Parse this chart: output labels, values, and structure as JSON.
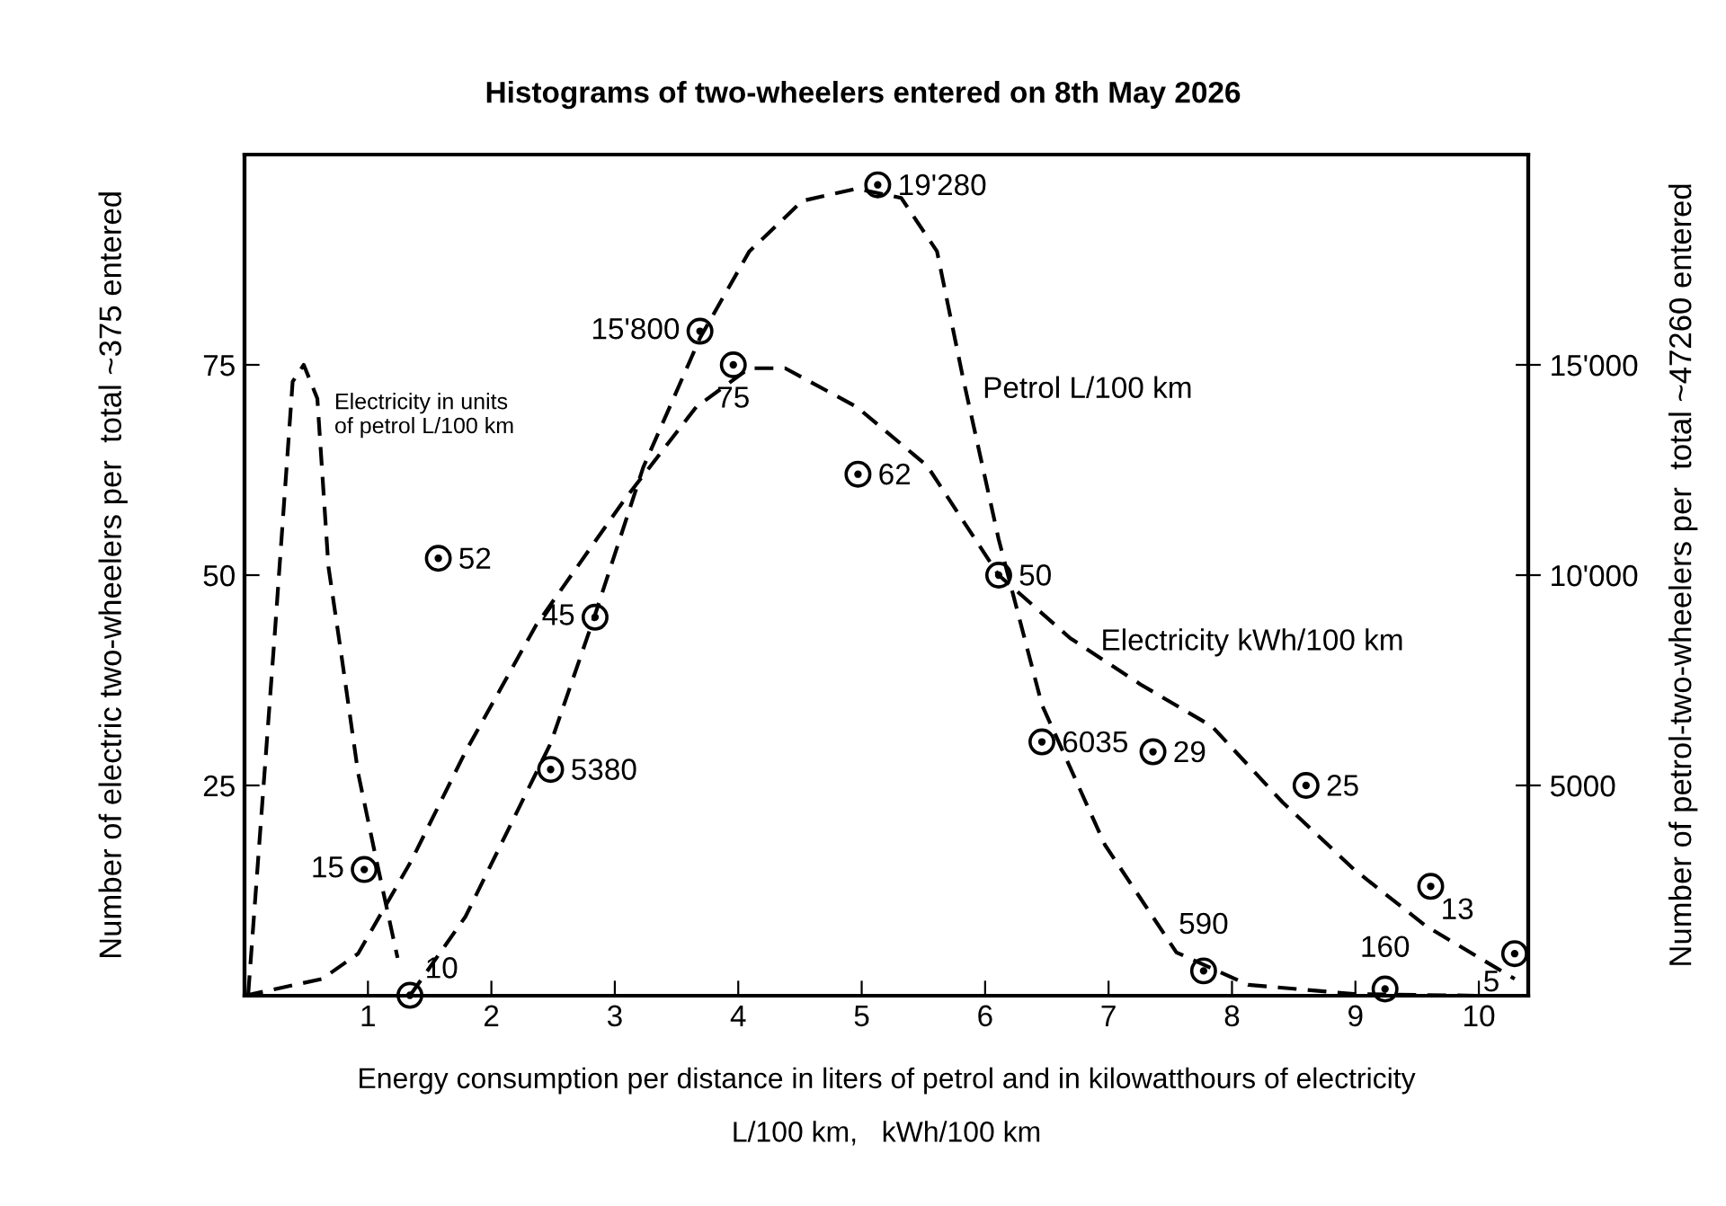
{
  "chart_data": {
    "type": "line",
    "title": "Histograms of two-wheelers entered on 8th May 2026",
    "xlabel": "Energy consumption per distance in liters of petrol and in kilowatthours of electricity\n\nL/100 km,   kWh/100 km",
    "ylabel": "Number of electric two-wheelers per  total ~375 entered",
    "y2label": "Number of petrol-two-wheelers per  total ~47260 entered",
    "xlim": [
      0,
      10.4
    ],
    "xticks": [
      1,
      2,
      3,
      4,
      5,
      6,
      7,
      8,
      9,
      10
    ],
    "ylim": [
      0,
      100
    ],
    "yticks": [
      25,
      50,
      75
    ],
    "y2lim": [
      0,
      20000
    ],
    "y2ticks": [
      {
        "value": 5000,
        "label": "5000"
      },
      {
        "value": 10000,
        "label": "10'000"
      },
      {
        "value": 15000,
        "label": "15'000"
      }
    ],
    "grid": false,
    "line_style": "dashed",
    "annotations": [
      "Electricity in units\nof petrol L/100 km",
      "Petrol L/100 km",
      "Electricity kWh/100 km"
    ],
    "series": [
      {
        "color": "#000000",
        "marker": "none",
        "x": [
          0.03,
          0.25,
          0.39,
          0.48,
          0.59,
          0.68,
          0.78,
          0.92,
          1.07,
          1.24
        ],
        "values": [
          0.2,
          44,
          73,
          75,
          71,
          51,
          41,
          26.5,
          16,
          4.5
        ]
      },
      {
        "color": "#000000",
        "marker": "none",
        "x": [
          0,
          0.63,
          0.92,
          1.35,
          1.79,
          2.36,
          3.08,
          3.66,
          4.09,
          4.38,
          4.96,
          5.53,
          6.11,
          6.69,
          7.26,
          7.84,
          8.41,
          8.99,
          9.57,
          10.29
        ],
        "values": [
          0,
          2,
          5,
          16,
          29,
          44,
          59,
          70,
          74.6,
          74.6,
          70,
          63,
          50,
          42.5,
          37,
          32,
          23,
          15,
          8.3,
          2
        ]
      },
      {
        "axis": "y2",
        "color": "#000000",
        "marker": "none",
        "x": [
          1.34,
          1.79,
          2.48,
          2.84,
          3.23,
          3.69,
          4.09,
          4.52,
          4.96,
          5.32,
          5.61,
          5.82,
          6.11,
          6.46,
          6.97,
          7.55,
          8.13,
          8.99,
          10
        ],
        "values": [
          0,
          1880,
          6000,
          9060,
          12560,
          15640,
          17700,
          18900,
          19190,
          18970,
          17700,
          14700,
          10850,
          6920,
          3590,
          1030,
          260,
          40,
          0
        ]
      },
      {
        "type": "scatter",
        "color": "#000000",
        "marker": "circle",
        "x": [
          0.97,
          1.57,
          2.84,
          3.96,
          4.97,
          6.11,
          7.36,
          8.6,
          9.61,
          10.29
        ],
        "values": [
          15,
          52,
          45,
          75,
          62,
          50,
          29,
          25,
          13,
          5
        ],
        "value_labels": [
          "15",
          "52",
          "45",
          "75",
          "62",
          "50",
          "29",
          "25",
          "13",
          "5"
        ]
      },
      {
        "type": "scatter",
        "axis": "y2",
        "color": "#000000",
        "marker": "circle",
        "x": [
          1.34,
          2.48,
          3.69,
          5.13,
          6.46,
          7.77,
          9.24
        ],
        "values": [
          10,
          5380,
          15800,
          19280,
          6035,
          590,
          160
        ],
        "value_labels": [
          "10",
          "5380",
          "15'800",
          "19'280",
          "6035",
          "590",
          "160"
        ]
      }
    ]
  }
}
